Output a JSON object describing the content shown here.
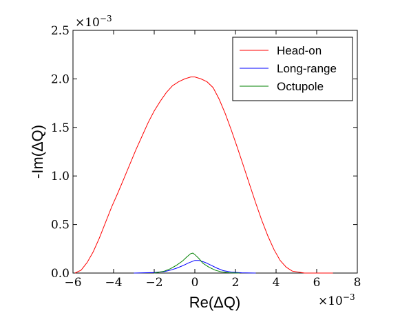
{
  "chart_data": {
    "type": "line",
    "xlabel": "Re(ΔQ)",
    "ylabel": "-Im(ΔQ)",
    "x_multiplier": "×10",
    "x_multiplier_exp": "−3",
    "y_multiplier": "×10",
    "y_multiplier_exp": "−3",
    "xlim": [
      -6,
      8
    ],
    "ylim": [
      0,
      2.5
    ],
    "x_ticks": [
      -6,
      -4,
      -2,
      0,
      2,
      4,
      6,
      8
    ],
    "x_tick_labels": [
      "−6",
      "−4",
      "−2",
      "0",
      "2",
      "4",
      "6",
      "8"
    ],
    "y_ticks": [
      0,
      0.5,
      1.0,
      1.5,
      2.0,
      2.5
    ],
    "y_tick_labels": [
      "0.0",
      "0.5",
      "1.0",
      "1.5",
      "2.0",
      "2.5"
    ],
    "grid": false,
    "legend_position": "top-right",
    "series": [
      {
        "name": "Head-on",
        "color": "#ff0000",
        "x": [
          -5.9,
          -5.6,
          -5.3,
          -5.0,
          -4.7,
          -4.4,
          -4.1,
          -3.8,
          -3.5,
          -3.2,
          -2.9,
          -2.6,
          -2.3,
          -2.0,
          -1.7,
          -1.4,
          -1.1,
          -0.8,
          -0.5,
          -0.2,
          0.0,
          0.3,
          0.6,
          0.9,
          1.2,
          1.5,
          1.8,
          2.1,
          2.4,
          2.7,
          3.0,
          3.3,
          3.6,
          3.9,
          4.2,
          4.5,
          4.8,
          5.1,
          5.4,
          5.7,
          6.0,
          6.4,
          6.8
        ],
        "y": [
          0.0,
          0.03,
          0.11,
          0.22,
          0.36,
          0.52,
          0.68,
          0.82,
          0.97,
          1.12,
          1.27,
          1.41,
          1.55,
          1.67,
          1.77,
          1.86,
          1.93,
          1.97,
          2.0,
          2.02,
          2.02,
          2.0,
          1.97,
          1.91,
          1.79,
          1.64,
          1.47,
          1.29,
          1.1,
          0.91,
          0.72,
          0.54,
          0.38,
          0.24,
          0.13,
          0.06,
          0.02,
          0.01,
          0.0,
          0.0,
          0.0,
          0.0,
          0.0
        ]
      },
      {
        "name": "Long-range",
        "color": "#0000ff",
        "x": [
          -3.0,
          -2.0,
          -1.5,
          -1.2,
          -0.9,
          -0.6,
          -0.3,
          0.0,
          0.2,
          0.5,
          0.8,
          1.1,
          1.4,
          1.8,
          2.3,
          3.0
        ],
        "y": [
          0.0,
          0.005,
          0.015,
          0.03,
          0.05,
          0.075,
          0.105,
          0.13,
          0.13,
          0.11,
          0.08,
          0.05,
          0.025,
          0.01,
          0.003,
          0.0
        ]
      },
      {
        "name": "Octupole",
        "color": "#008000",
        "x": [
          -2.0,
          -1.5,
          -1.2,
          -0.9,
          -0.6,
          -0.4,
          -0.2,
          -0.1,
          0.0,
          0.2,
          0.4,
          0.7,
          1.0,
          1.3,
          1.7,
          2.2
        ],
        "y": [
          0.0,
          0.02,
          0.045,
          0.08,
          0.125,
          0.165,
          0.2,
          0.205,
          0.19,
          0.15,
          0.1,
          0.06,
          0.03,
          0.012,
          0.003,
          0.0
        ]
      }
    ]
  }
}
